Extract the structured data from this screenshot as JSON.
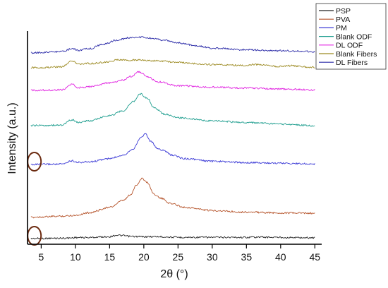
{
  "chart_data": {
    "type": "line",
    "title": "",
    "xlabel": "2θ (°)",
    "ylabel": "Intensity (a.u.)",
    "xlim": [
      3,
      46
    ],
    "x_ticks": [
      5,
      10,
      15,
      20,
      25,
      30,
      35,
      40,
      45
    ],
    "tick_labels": [
      "5",
      "10",
      "15",
      "20",
      "25",
      "30",
      "35",
      "40",
      "45"
    ],
    "y_ticks_shown": false,
    "legend_position": "top-right",
    "series": [
      {
        "name": "PSP",
        "color": "#222222",
        "x": [
          3.5,
          5,
          7,
          9,
          10,
          12,
          14,
          15,
          16,
          17,
          18,
          20,
          22,
          25,
          30,
          35,
          36,
          40,
          41,
          45
        ],
        "y": [
          0.01,
          0.02,
          0.03,
          0.05,
          0.1,
          0.1,
          0.16,
          0.18,
          0.32,
          0.28,
          0.2,
          0.18,
          0.18,
          0.12,
          0.12,
          0.12,
          0.14,
          0.12,
          0.1,
          0.08
        ]
      },
      {
        "name": "PVA",
        "color": "#b5532a",
        "x": [
          3.5,
          5,
          8,
          10,
          12,
          15,
          17,
          18,
          19,
          19.7,
          20.5,
          21.5,
          22.5,
          24,
          26,
          30,
          35,
          40,
          45
        ],
        "y": [
          0.0,
          0.05,
          0.12,
          0.2,
          0.45,
          0.95,
          1.6,
          2.1,
          3.1,
          3.7,
          3.3,
          2.2,
          1.8,
          1.3,
          0.95,
          0.65,
          0.5,
          0.42,
          0.4
        ]
      },
      {
        "name": "PM",
        "color": "#3b3ad6",
        "x": [
          3.5,
          5,
          8,
          9.5,
          10.5,
          12,
          15,
          17,
          18.5,
          19.5,
          20.2,
          21,
          22,
          23,
          24,
          26,
          30,
          35,
          40,
          45
        ],
        "y": [
          0.0,
          0.02,
          0.03,
          0.35,
          0.2,
          0.25,
          0.55,
          0.9,
          1.5,
          2.5,
          2.9,
          2.2,
          1.5,
          1.3,
          0.9,
          0.55,
          0.3,
          0.18,
          0.12,
          0.05
        ]
      },
      {
        "name": "Blank ODF",
        "color": "#1f9e8f",
        "x": [
          3.5,
          5,
          8,
          9.5,
          10.5,
          12,
          15,
          17,
          18.5,
          19.5,
          20.5,
          21.5,
          23,
          25,
          30,
          35,
          40,
          45
        ],
        "y": [
          0.0,
          0.02,
          0.05,
          0.55,
          0.3,
          0.45,
          0.95,
          1.4,
          2.3,
          3.0,
          2.6,
          1.7,
          1.1,
          0.75,
          0.45,
          0.3,
          0.15,
          0.0
        ]
      },
      {
        "name": "DL ODF",
        "color": "#e020e0",
        "x": [
          3.5,
          5,
          8,
          9.5,
          10.5,
          12,
          15,
          17,
          18,
          19.3,
          20.5,
          22,
          25,
          30,
          35,
          40,
          45
        ],
        "y": [
          0.0,
          0.02,
          0.05,
          0.55,
          0.25,
          0.35,
          0.7,
          0.95,
          1.3,
          1.75,
          1.3,
          0.8,
          0.45,
          0.3,
          0.22,
          0.12,
          0.05
        ]
      },
      {
        "name": "Blank Fibers",
        "color": "#9c8a22",
        "x": [
          3.5,
          5,
          8,
          9.5,
          10.5,
          12,
          15,
          16,
          18,
          19,
          20,
          22,
          25,
          30,
          35,
          36,
          40,
          41,
          45
        ],
        "y": [
          0.0,
          0.02,
          0.1,
          0.65,
          0.35,
          0.4,
          0.55,
          0.75,
          0.7,
          0.75,
          0.7,
          0.65,
          0.5,
          0.3,
          0.22,
          0.3,
          0.12,
          0.2,
          0.05
        ]
      },
      {
        "name": "DL Fibers",
        "color": "#2c2ca8",
        "x": [
          3.5,
          5,
          8,
          9.5,
          10.5,
          12,
          14,
          16,
          18,
          19.5,
          21,
          23,
          25,
          28,
          30,
          35,
          40,
          45
        ],
        "y": [
          0.0,
          0.05,
          0.12,
          0.4,
          0.25,
          0.4,
          0.8,
          1.2,
          1.45,
          1.5,
          1.4,
          1.2,
          0.95,
          0.65,
          0.45,
          0.3,
          0.2,
          0.12
        ]
      }
    ],
    "annotations": [
      {
        "type": "ellipse-marker",
        "color": "#6b2a10",
        "x": 4.0,
        "series": "PSP"
      },
      {
        "type": "ellipse-marker",
        "color": "#6b2a10",
        "x": 4.0,
        "series": "PM"
      }
    ]
  }
}
